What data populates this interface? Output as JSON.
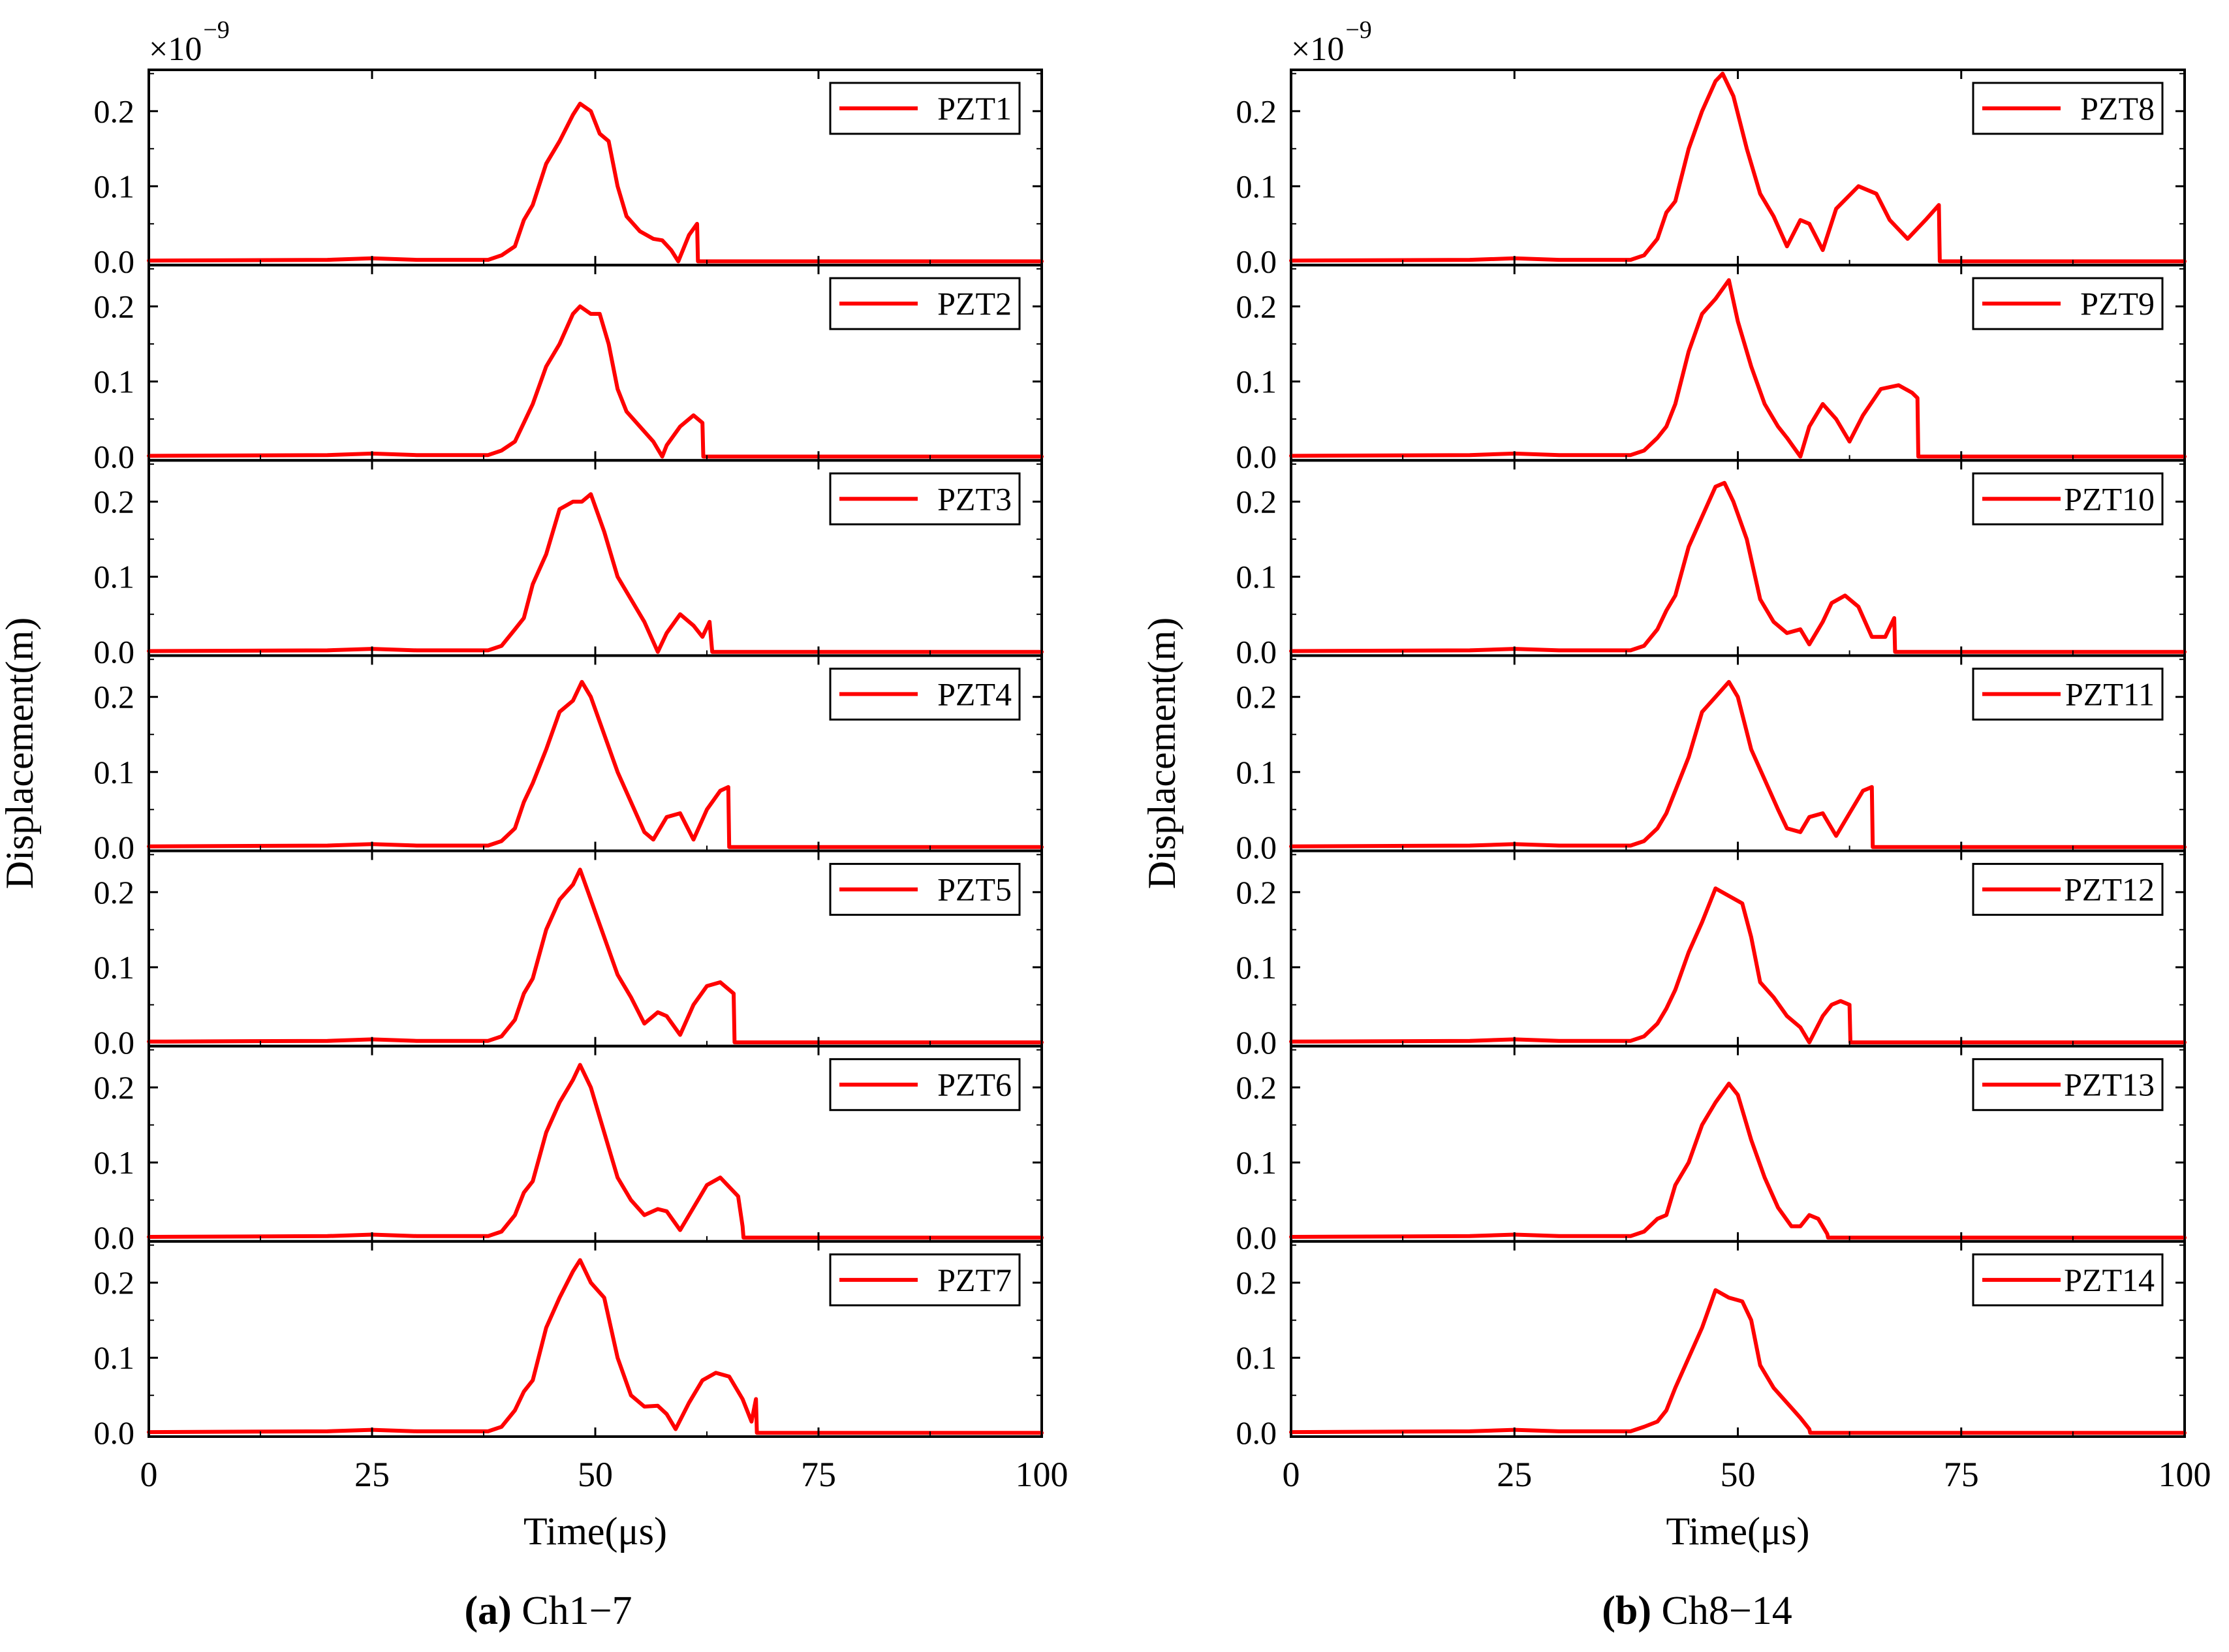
{
  "figure": {
    "y_axis_label": "Displacement(m)",
    "x_axis_label": "Time(μs)",
    "multiplier_base": "×10",
    "multiplier_exponent": "−9",
    "colors": {
      "series": "#ff0000",
      "axes": "#000000",
      "background": "#ffffff"
    }
  },
  "chart_data": [
    {
      "type": "line",
      "caption_letter": "(a)",
      "caption_text": " Ch1−7",
      "xlim": [
        0,
        100
      ],
      "ylim": [
        -0.005,
        0.255
      ],
      "x_ticks": [
        "0",
        "25",
        "50",
        "75",
        "100"
      ],
      "y_ticks": [
        "0.0",
        "0.1",
        "0.2"
      ],
      "x_tick_values": [
        0,
        25,
        50,
        75,
        100
      ],
      "y_tick_values": [
        0,
        0.1,
        0.2
      ],
      "panels": [
        {
          "legend": "PZT1",
          "x": [
            0,
            20,
            25,
            30,
            38,
            39.5,
            41,
            42,
            43,
            44.5,
            46,
            47.5,
            48.3,
            49.5,
            50.5,
            51.5,
            52.5,
            53.5,
            55,
            56.5,
            57.5,
            58.5,
            59.3,
            60.5,
            61.4,
            61.5,
            100
          ],
          "y": [
            0.001,
            0.002,
            0.004,
            0.002,
            0.002,
            0.008,
            0.02,
            0.055,
            0.075,
            0.13,
            0.16,
            0.195,
            0.21,
            0.2,
            0.17,
            0.16,
            0.1,
            0.06,
            0.04,
            0.03,
            0.028,
            0.015,
            0.0,
            0.035,
            0.05,
            0.0,
            0.0
          ]
        },
        {
          "legend": "PZT2",
          "x": [
            0,
            20,
            25,
            30,
            38,
            39.5,
            41,
            42,
            43,
            44.5,
            46,
            47.5,
            48.3,
            49.5,
            50.5,
            51.5,
            52.5,
            53.5,
            55,
            56.5,
            57.5,
            58,
            59.5,
            61,
            62,
            62.1,
            100
          ],
          "y": [
            0.001,
            0.002,
            0.004,
            0.002,
            0.002,
            0.008,
            0.02,
            0.045,
            0.07,
            0.12,
            0.15,
            0.19,
            0.2,
            0.19,
            0.19,
            0.15,
            0.09,
            0.06,
            0.04,
            0.02,
            0.0,
            0.015,
            0.04,
            0.055,
            0.045,
            0.0,
            0.0
          ]
        },
        {
          "legend": "PZT3",
          "x": [
            0,
            20,
            25,
            30,
            38,
            39.5,
            41,
            42,
            43,
            44.5,
            46,
            47.5,
            48.5,
            49.5,
            51,
            52.5,
            54,
            55.5,
            57,
            58,
            59.5,
            61,
            62,
            62.8,
            63.1,
            100
          ],
          "y": [
            0.001,
            0.002,
            0.004,
            0.002,
            0.002,
            0.008,
            0.03,
            0.045,
            0.09,
            0.13,
            0.19,
            0.2,
            0.2,
            0.21,
            0.16,
            0.1,
            0.07,
            0.04,
            0.0,
            0.025,
            0.05,
            0.035,
            0.02,
            0.04,
            0.0,
            0.0
          ]
        },
        {
          "legend": "PZT4",
          "x": [
            0,
            20,
            25,
            30,
            38,
            39.5,
            41,
            42,
            43,
            44.5,
            46,
            47.5,
            48.5,
            49.5,
            51,
            52.5,
            54,
            55.5,
            56.5,
            58,
            59.5,
            61,
            62.5,
            64,
            64.9,
            65,
            100
          ],
          "y": [
            0.001,
            0.002,
            0.004,
            0.002,
            0.002,
            0.008,
            0.025,
            0.06,
            0.085,
            0.13,
            0.18,
            0.195,
            0.22,
            0.2,
            0.15,
            0.1,
            0.06,
            0.02,
            0.01,
            0.04,
            0.045,
            0.01,
            0.05,
            0.075,
            0.08,
            0.0,
            0.0
          ]
        },
        {
          "legend": "PZT5",
          "x": [
            0,
            20,
            25,
            30,
            38,
            39.5,
            41,
            42,
            43,
            44.5,
            46,
            47.5,
            48.3,
            49.5,
            51,
            52.5,
            54,
            55.5,
            57,
            58,
            59.5,
            61,
            62.5,
            64,
            65.5,
            65.6,
            100
          ],
          "y": [
            0.001,
            0.002,
            0.004,
            0.002,
            0.002,
            0.008,
            0.03,
            0.065,
            0.085,
            0.15,
            0.19,
            0.21,
            0.23,
            0.19,
            0.14,
            0.09,
            0.06,
            0.025,
            0.04,
            0.035,
            0.01,
            0.05,
            0.075,
            0.08,
            0.065,
            0.0,
            0.0
          ]
        },
        {
          "legend": "PZT6",
          "x": [
            0,
            20,
            25,
            30,
            38,
            39.5,
            41,
            42,
            43,
            44.5,
            46,
            47.5,
            48.3,
            49.5,
            51,
            52.5,
            54,
            55.5,
            57,
            58,
            59.5,
            61,
            62.5,
            64,
            66,
            66.5,
            66.6,
            100
          ],
          "y": [
            0.001,
            0.002,
            0.004,
            0.002,
            0.002,
            0.008,
            0.03,
            0.06,
            0.075,
            0.14,
            0.18,
            0.21,
            0.23,
            0.2,
            0.14,
            0.08,
            0.05,
            0.03,
            0.038,
            0.035,
            0.01,
            0.04,
            0.07,
            0.08,
            0.055,
            0.015,
            0.0,
            0.0
          ]
        },
        {
          "legend": "PZT7",
          "x": [
            0,
            20,
            25,
            30,
            38,
            39.5,
            41,
            42,
            43,
            44.5,
            46,
            47.5,
            48.3,
            49.5,
            51,
            52.5,
            54,
            55.5,
            57,
            58,
            59,
            60.5,
            62,
            63.5,
            65,
            66.5,
            67.5,
            68,
            68.1,
            100
          ],
          "y": [
            0.001,
            0.002,
            0.004,
            0.002,
            0.002,
            0.008,
            0.03,
            0.055,
            0.07,
            0.14,
            0.18,
            0.215,
            0.23,
            0.2,
            0.18,
            0.1,
            0.05,
            0.035,
            0.036,
            0.025,
            0.005,
            0.04,
            0.07,
            0.08,
            0.075,
            0.045,
            0.015,
            0.045,
            0.0,
            0.0
          ]
        }
      ]
    },
    {
      "type": "line",
      "caption_letter": "(b)",
      "caption_text": " Ch8−14",
      "xlim": [
        0,
        100
      ],
      "ylim": [
        -0.005,
        0.255
      ],
      "x_ticks": [
        "0",
        "25",
        "50",
        "75",
        "100"
      ],
      "y_ticks": [
        "0.0",
        "0.1",
        "0.2"
      ],
      "x_tick_values": [
        0,
        25,
        50,
        75,
        100
      ],
      "y_tick_values": [
        0,
        0.1,
        0.2
      ],
      "panels": [
        {
          "legend": "PZT8",
          "x": [
            0,
            20,
            25,
            30,
            38,
            39.5,
            41,
            42,
            43,
            44.5,
            46,
            47.5,
            48.3,
            49.5,
            51,
            52.5,
            54,
            55.5,
            57,
            58,
            59.5,
            61,
            63.5,
            65.5,
            67,
            69,
            71,
            72.5,
            72.6,
            100
          ],
          "y": [
            0.001,
            0.002,
            0.004,
            0.002,
            0.002,
            0.008,
            0.03,
            0.065,
            0.08,
            0.15,
            0.2,
            0.24,
            0.25,
            0.22,
            0.15,
            0.09,
            0.06,
            0.02,
            0.055,
            0.05,
            0.015,
            0.07,
            0.1,
            0.09,
            0.055,
            0.03,
            0.055,
            0.075,
            0.0,
            0.0
          ]
        },
        {
          "legend": "PZT9",
          "x": [
            0,
            20,
            25,
            30,
            38,
            39.5,
            41,
            42,
            43,
            44.5,
            46,
            47.5,
            49,
            50,
            51.5,
            53,
            54.5,
            55.5,
            57,
            58,
            59.5,
            61,
            62.5,
            64,
            66,
            68,
            69.5,
            70.1,
            70.2,
            100
          ],
          "y": [
            0.001,
            0.002,
            0.004,
            0.002,
            0.002,
            0.008,
            0.025,
            0.04,
            0.07,
            0.14,
            0.19,
            0.21,
            0.235,
            0.18,
            0.12,
            0.07,
            0.04,
            0.025,
            0.0,
            0.04,
            0.07,
            0.05,
            0.02,
            0.055,
            0.09,
            0.095,
            0.085,
            0.078,
            0.0,
            0.0
          ]
        },
        {
          "legend": "PZT10",
          "x": [
            0,
            20,
            25,
            30,
            38,
            39.5,
            41,
            42,
            43,
            44.5,
            46,
            47.5,
            48.5,
            49.5,
            51,
            52.5,
            54,
            55.5,
            57,
            58,
            59.5,
            60.5,
            62,
            63.5,
            65,
            66.5,
            67.5,
            67.6,
            100
          ],
          "y": [
            0.001,
            0.002,
            0.004,
            0.002,
            0.002,
            0.008,
            0.03,
            0.055,
            0.075,
            0.14,
            0.18,
            0.22,
            0.225,
            0.2,
            0.15,
            0.07,
            0.04,
            0.025,
            0.03,
            0.01,
            0.04,
            0.065,
            0.075,
            0.06,
            0.02,
            0.02,
            0.045,
            0.0,
            0.0
          ]
        },
        {
          "legend": "PZT11",
          "x": [
            0,
            20,
            25,
            30,
            38,
            39.5,
            41,
            42,
            43,
            44.5,
            46,
            47.5,
            49,
            50,
            51.5,
            53,
            54.5,
            55.5,
            57,
            58,
            59.5,
            61,
            62.5,
            64,
            65,
            65.1,
            100
          ],
          "y": [
            0.001,
            0.002,
            0.004,
            0.002,
            0.002,
            0.008,
            0.025,
            0.045,
            0.075,
            0.12,
            0.18,
            0.2,
            0.22,
            0.2,
            0.13,
            0.09,
            0.05,
            0.025,
            0.02,
            0.04,
            0.045,
            0.015,
            0.045,
            0.075,
            0.08,
            0.0,
            0.0
          ]
        },
        {
          "legend": "PZT12",
          "x": [
            0,
            20,
            25,
            30,
            38,
            39.5,
            41,
            42,
            43,
            44.5,
            46,
            47.5,
            49,
            50.5,
            51.5,
            52.5,
            54,
            55.5,
            57,
            58,
            59.5,
            60.5,
            61.5,
            62.5,
            62.6,
            100
          ],
          "y": [
            0.001,
            0.002,
            0.004,
            0.002,
            0.002,
            0.008,
            0.025,
            0.045,
            0.07,
            0.12,
            0.16,
            0.205,
            0.195,
            0.185,
            0.14,
            0.08,
            0.06,
            0.035,
            0.02,
            0.0,
            0.035,
            0.05,
            0.055,
            0.05,
            0.0,
            0.0
          ]
        },
        {
          "legend": "PZT13",
          "x": [
            0,
            20,
            25,
            30,
            38,
            39.5,
            41,
            42,
            43,
            44.5,
            46,
            47.5,
            49,
            50,
            51.5,
            53,
            54.5,
            56,
            57,
            58,
            59,
            60,
            60.1,
            100
          ],
          "y": [
            0.001,
            0.002,
            0.004,
            0.002,
            0.002,
            0.008,
            0.025,
            0.03,
            0.07,
            0.1,
            0.15,
            0.18,
            0.205,
            0.19,
            0.13,
            0.08,
            0.04,
            0.015,
            0.015,
            0.03,
            0.025,
            0.005,
            0.0,
            0.0
          ]
        },
        {
          "legend": "PZT14",
          "x": [
            0,
            20,
            25,
            30,
            38,
            39.5,
            41,
            42,
            43,
            44.5,
            46,
            47.5,
            49,
            50.5,
            51.5,
            52.5,
            54,
            55.5,
            57,
            58,
            58.1,
            100
          ],
          "y": [
            0.001,
            0.002,
            0.004,
            0.002,
            0.002,
            0.008,
            0.015,
            0.03,
            0.06,
            0.1,
            0.14,
            0.19,
            0.18,
            0.175,
            0.15,
            0.09,
            0.06,
            0.04,
            0.02,
            0.005,
            0.0,
            0.0
          ]
        }
      ]
    }
  ]
}
